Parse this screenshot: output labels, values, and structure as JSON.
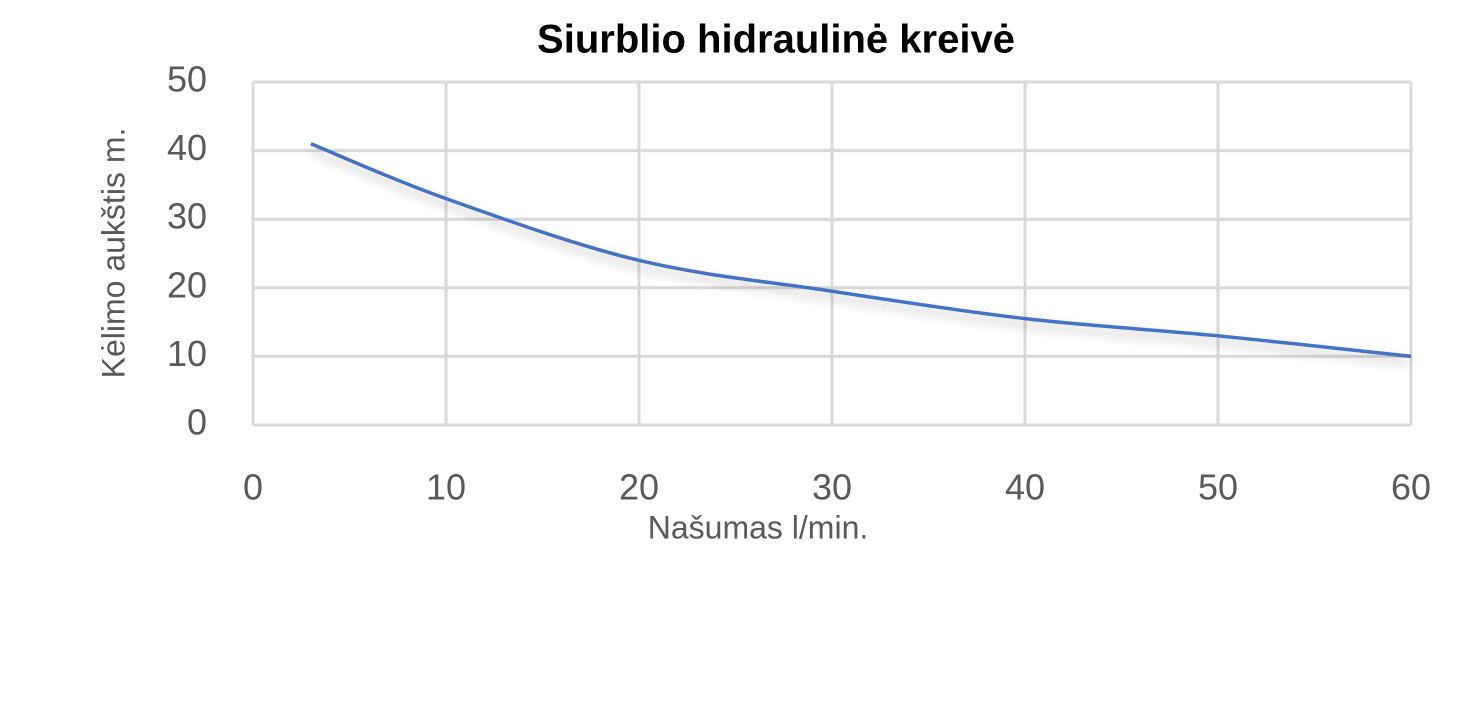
{
  "chart_data": {
    "type": "line",
    "title": "Siurblio hidraulinė kreivė",
    "x_label": "Našumas l/min.",
    "y_label": "Kėlimo aukštis m.",
    "x": [
      3,
      10,
      20,
      30,
      40,
      50,
      60
    ],
    "series": [
      {
        "color": "#4472c4",
        "values": [
          41,
          33,
          24,
          19.5,
          15.5,
          13,
          10
        ]
      }
    ],
    "xlim": [
      0,
      60
    ],
    "xticks": [
      0,
      10,
      20,
      30,
      40,
      50,
      60
    ],
    "ylim": [
      0,
      50
    ],
    "yticks": [
      0,
      10,
      20,
      30,
      40,
      50
    ],
    "grid": true,
    "smooth": true
  }
}
